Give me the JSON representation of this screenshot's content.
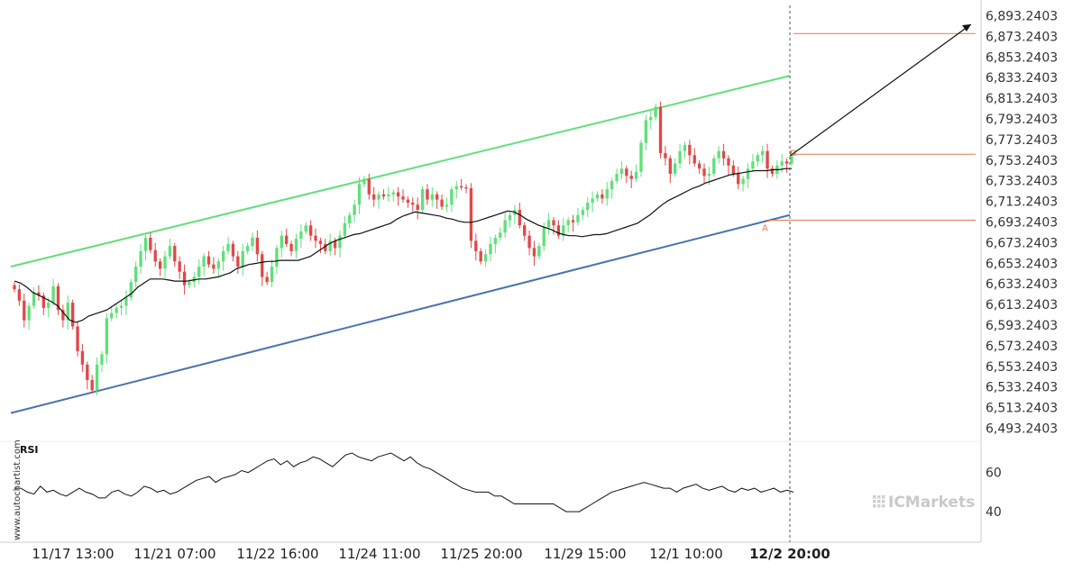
{
  "chart_data": [
    {
      "type": "candlestick",
      "title": "",
      "ylim": [
        6483.2403,
        6903.2403
      ],
      "y_ticks": [
        "6,893.2403",
        "6,873.2403",
        "6,853.2403",
        "6,833.2403",
        "6,813.2403",
        "6,793.2403",
        "6,773.2403",
        "6,753.2403",
        "6,733.2403",
        "6,713.2403",
        "6,693.2403",
        "6,673.2403",
        "6,653.2403",
        "6,633.2403",
        "6,613.2403",
        "6,593.2403",
        "6,573.2403",
        "6,553.2403",
        "6,533.2403",
        "6,513.2403",
        "6,493.2403"
      ],
      "x_ticks": [
        "11/17 13:00",
        "11/21 07:00",
        "11/22 16:00",
        "11/24 11:00",
        "11/25 20:00",
        "11/29 15:00",
        "12/1 10:00",
        "12/2 20:00"
      ],
      "highlighted_x_tick": "12/2 20:00",
      "candles_close": [
        6628,
        6617,
        6598,
        6612,
        6625,
        6622,
        6610,
        6615,
        6631,
        6608,
        6598,
        6615,
        6592,
        6568,
        6555,
        6540,
        6530,
        6555,
        6565,
        6600,
        6605,
        6610,
        6612,
        6620,
        6635,
        6650,
        6665,
        6678,
        6666,
        6655,
        6648,
        6660,
        6670,
        6655,
        6645,
        6632,
        6635,
        6640,
        6650,
        6660,
        6652,
        6648,
        6655,
        6665,
        6672,
        6660,
        6650,
        6665,
        6670,
        6678,
        6662,
        6640,
        6635,
        6650,
        6668,
        6680,
        6672,
        6665,
        6677,
        6684,
        6690,
        6680,
        6675,
        6672,
        6665,
        6675,
        6668,
        6680,
        6692,
        6700,
        6710,
        6730,
        6735,
        6720,
        6715,
        6720,
        6718,
        6720,
        6722,
        6718,
        6715,
        6712,
        6710,
        6705,
        6725,
        6715,
        6720,
        6715,
        6708,
        6710,
        6725,
        6728,
        6727,
        6726,
        6675,
        6665,
        6655,
        6662,
        6672,
        6678,
        6683,
        6695,
        6700,
        6705,
        6690,
        6680,
        6668,
        6660,
        6670,
        6688,
        6695,
        6690,
        6680,
        6690,
        6695,
        6693,
        6700,
        6705,
        6712,
        6716,
        6720,
        6716,
        6725,
        6733,
        6740,
        6745,
        6738,
        6735,
        6742,
        6770,
        6792,
        6795,
        6805,
        6760,
        6755,
        6740,
        6750,
        6762,
        6768,
        6758,
        6750,
        6745,
        6738,
        6740,
        6755,
        6762,
        6755,
        6748,
        6740,
        6730,
        6735,
        6745,
        6752,
        6758,
        6762,
        6745,
        6740,
        6748,
        6752,
        6750,
        6757
      ],
      "moving_average": [
        6636,
        6634,
        6630,
        6625,
        6622,
        6619,
        6616,
        6612,
        6605,
        6598,
        6596,
        6598,
        6602,
        6604,
        6606,
        6608,
        6612,
        6616,
        6620,
        6624,
        6630,
        6634,
        6638,
        6638,
        6638,
        6637,
        6636,
        6636,
        6636,
        6637,
        6638,
        6638,
        6639,
        6640,
        6642,
        6644,
        6648,
        6650,
        6652,
        6653,
        6654,
        6655,
        6655,
        6656,
        6656,
        6656,
        6656,
        6658,
        6660,
        6664,
        6668,
        6672,
        6675,
        6677,
        6679,
        6681,
        6682,
        6684,
        6686,
        6688,
        6690,
        6692,
        6696,
        6699,
        6701,
        6703,
        6702,
        6701,
        6700,
        6699,
        6697,
        6696,
        6694,
        6693,
        6693,
        6694,
        6696,
        6698,
        6700,
        6702,
        6704,
        6703,
        6700,
        6696,
        6693,
        6690,
        6688,
        6686,
        6683,
        6681,
        6680,
        6680,
        6679,
        6680,
        6681,
        6681,
        6682,
        6684,
        6686,
        6688,
        6690,
        6692,
        6696,
        6700,
        6705,
        6710,
        6714,
        6717,
        6720,
        6723,
        6726,
        6728,
        6731,
        6733,
        6735,
        6737,
        6739,
        6740,
        6741,
        6742,
        6743,
        6743,
        6743,
        6744,
        6744,
        6745,
        6745
      ],
      "channel_upper_label": "",
      "channel_lower_label": "",
      "level_target": 6876,
      "level_current": 6759,
      "level_point_a": 6695,
      "point_a_label": "A",
      "rsi": {
        "label": "RSI",
        "ticks": [
          "60",
          "40"
        ],
        "values": [
          52,
          52,
          50,
          49,
          53,
          50,
          51,
          49,
          48,
          50,
          52,
          50,
          49,
          47,
          47,
          50,
          51,
          49,
          48,
          50,
          53,
          52,
          50,
          51,
          49,
          50,
          52,
          54,
          56,
          57,
          58,
          55,
          57,
          58,
          59,
          61,
          60,
          62,
          64,
          66,
          67,
          64,
          66,
          63,
          65,
          66,
          68,
          67,
          65,
          63,
          66,
          69,
          70,
          68,
          67,
          66,
          68,
          69,
          70,
          68,
          66,
          68,
          65,
          63,
          62,
          60,
          58,
          56,
          54,
          52,
          51,
          50,
          50,
          50,
          48,
          48,
          46,
          44,
          44,
          44,
          44,
          44,
          44,
          44,
          42,
          40,
          40,
          40,
          42,
          44,
          46,
          48,
          50,
          51,
          52,
          53,
          54,
          55,
          54,
          53,
          52,
          52,
          50,
          52,
          53,
          54,
          52,
          51,
          52,
          53,
          51,
          50,
          52,
          51,
          52,
          50,
          51,
          52,
          50,
          51,
          50
        ]
      }
    }
  ],
  "watermark": "www.autochartist.com",
  "brand": "ICMarkets"
}
